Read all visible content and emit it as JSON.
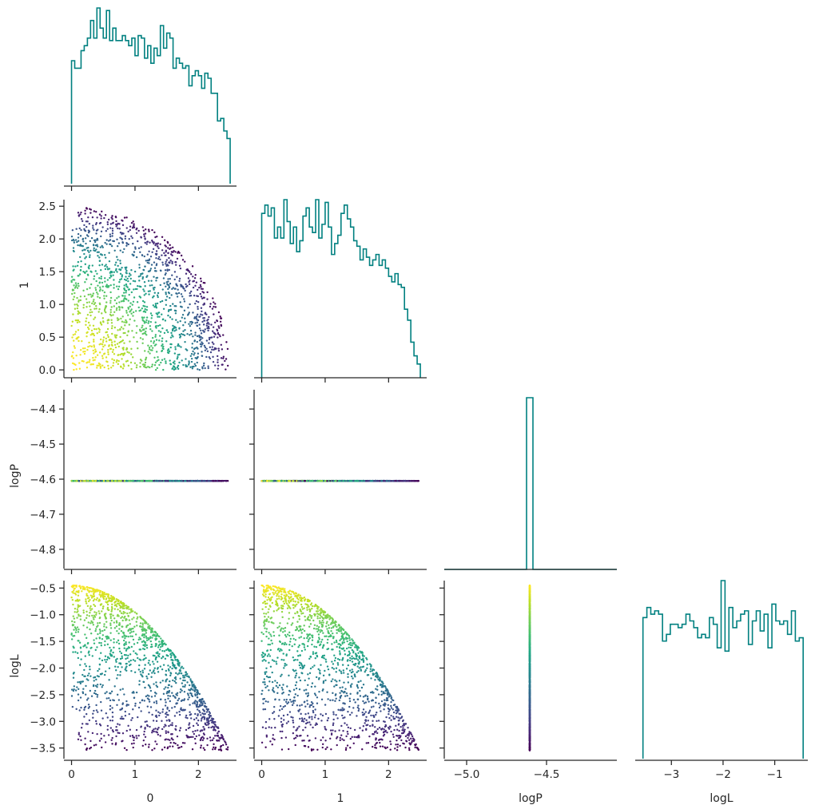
{
  "chart_data": {
    "type": "scatter",
    "layout": "corner",
    "variables": [
      "0",
      "1",
      "logP",
      "logL"
    ],
    "axis_labels": [
      "0",
      "1",
      "logP",
      "logL"
    ],
    "ranges": {
      "0": [
        -0.12,
        2.6
      ],
      "1": [
        -0.12,
        2.6
      ],
      "logP": [
        -4.855,
        -4.345
      ],
      "logL": [
        -3.7,
        -0.36
      ],
      "logP_hist_x": [
        -5.14,
        -4.06
      ]
    },
    "ticks": {
      "0": [
        0,
        1,
        2
      ],
      "1": [
        0,
        1,
        2
      ],
      "1_y": [
        0.0,
        0.5,
        1.0,
        1.5,
        2.0,
        2.5
      ],
      "logP_y": [
        -4.8,
        -4.7,
        -4.6,
        -4.5,
        -4.4
      ],
      "logP_x": [
        -5.0,
        -4.5
      ],
      "logL": [
        -3.5,
        -3.0,
        -2.5,
        -2.0,
        -1.5,
        -1.0,
        -0.5
      ],
      "logL_x": [
        -3,
        -2,
        -1
      ]
    },
    "tick_labels": {
      "0": [
        "0",
        "1",
        "2"
      ],
      "1": [
        "0",
        "1",
        "2"
      ],
      "1_y": [
        "0.0",
        "0.5",
        "1.0",
        "1.5",
        "2.0",
        "2.5"
      ],
      "logP_y": [
        "−4.8",
        "−4.7",
        "−4.6",
        "−4.5",
        "−4.4"
      ],
      "logP_x": [
        "−5.0",
        "−4.5"
      ],
      "logL": [
        "−3.5",
        "−3.0",
        "−2.5",
        "−2.0",
        "−1.5",
        "−1.0",
        "−0.5"
      ],
      "logL_x": [
        "−3",
        "−2",
        "−1"
      ]
    },
    "relation": "logL = -0.5 * (0^2 + 1^2) - 0.45, logP constant at -4.605",
    "logP_value": -4.605,
    "sample_count": 1500,
    "colormap": "viridis",
    "color_by": "logL",
    "hist": {
      "0": {
        "edges": [
          0,
          2.5
        ],
        "counts": [
          49,
          46,
          46,
          53,
          55,
          58,
          65,
          58,
          70,
          62,
          58,
          69,
          57,
          62,
          57,
          57,
          59,
          57,
          55,
          58,
          51,
          59,
          58,
          50,
          55,
          48,
          54,
          51,
          63,
          54,
          60,
          58,
          46,
          50,
          48,
          46,
          47,
          39,
          43,
          45,
          43,
          38,
          44,
          42,
          36,
          36,
          25,
          26,
          21,
          18
        ]
      },
      "1": {
        "edges": [
          0,
          2.5
        ],
        "counts": [
          60,
          63,
          59,
          62,
          51,
          55,
          51,
          65,
          57,
          49,
          55,
          46,
          50,
          59,
          62,
          55,
          53,
          65,
          51,
          56,
          64,
          55,
          45,
          49,
          52,
          60,
          63,
          58,
          55,
          50,
          48,
          43,
          47,
          44,
          41,
          43,
          45,
          41,
          43,
          40,
          37,
          35,
          38,
          34,
          33,
          25,
          21,
          13,
          8,
          5
        ]
      },
      "logP": {
        "edges": [
          -4.625,
          -4.585
        ],
        "counts": [
          1500
        ]
      },
      "logL": {
        "edges": [
          -3.55,
          -0.45
        ],
        "counts": [
          42,
          45,
          43,
          44,
          43,
          35,
          37,
          40,
          40,
          39,
          40,
          43,
          41,
          39,
          36,
          37,
          36,
          42,
          40,
          33,
          53,
          32,
          45,
          39,
          41,
          43,
          44,
          34,
          41,
          44,
          38,
          43,
          33,
          46,
          41,
          40,
          41,
          37,
          44,
          35,
          36
        ]
      }
    },
    "colors": {
      "hist": "#008080",
      "axis": "#262626",
      "viridis": [
        "#440154",
        "#482475",
        "#414487",
        "#355f8d",
        "#2a788e",
        "#21918c",
        "#22a884",
        "#44bf70",
        "#7ad151",
        "#bddf26",
        "#fde725"
      ]
    },
    "grid": false,
    "legend": "none"
  }
}
